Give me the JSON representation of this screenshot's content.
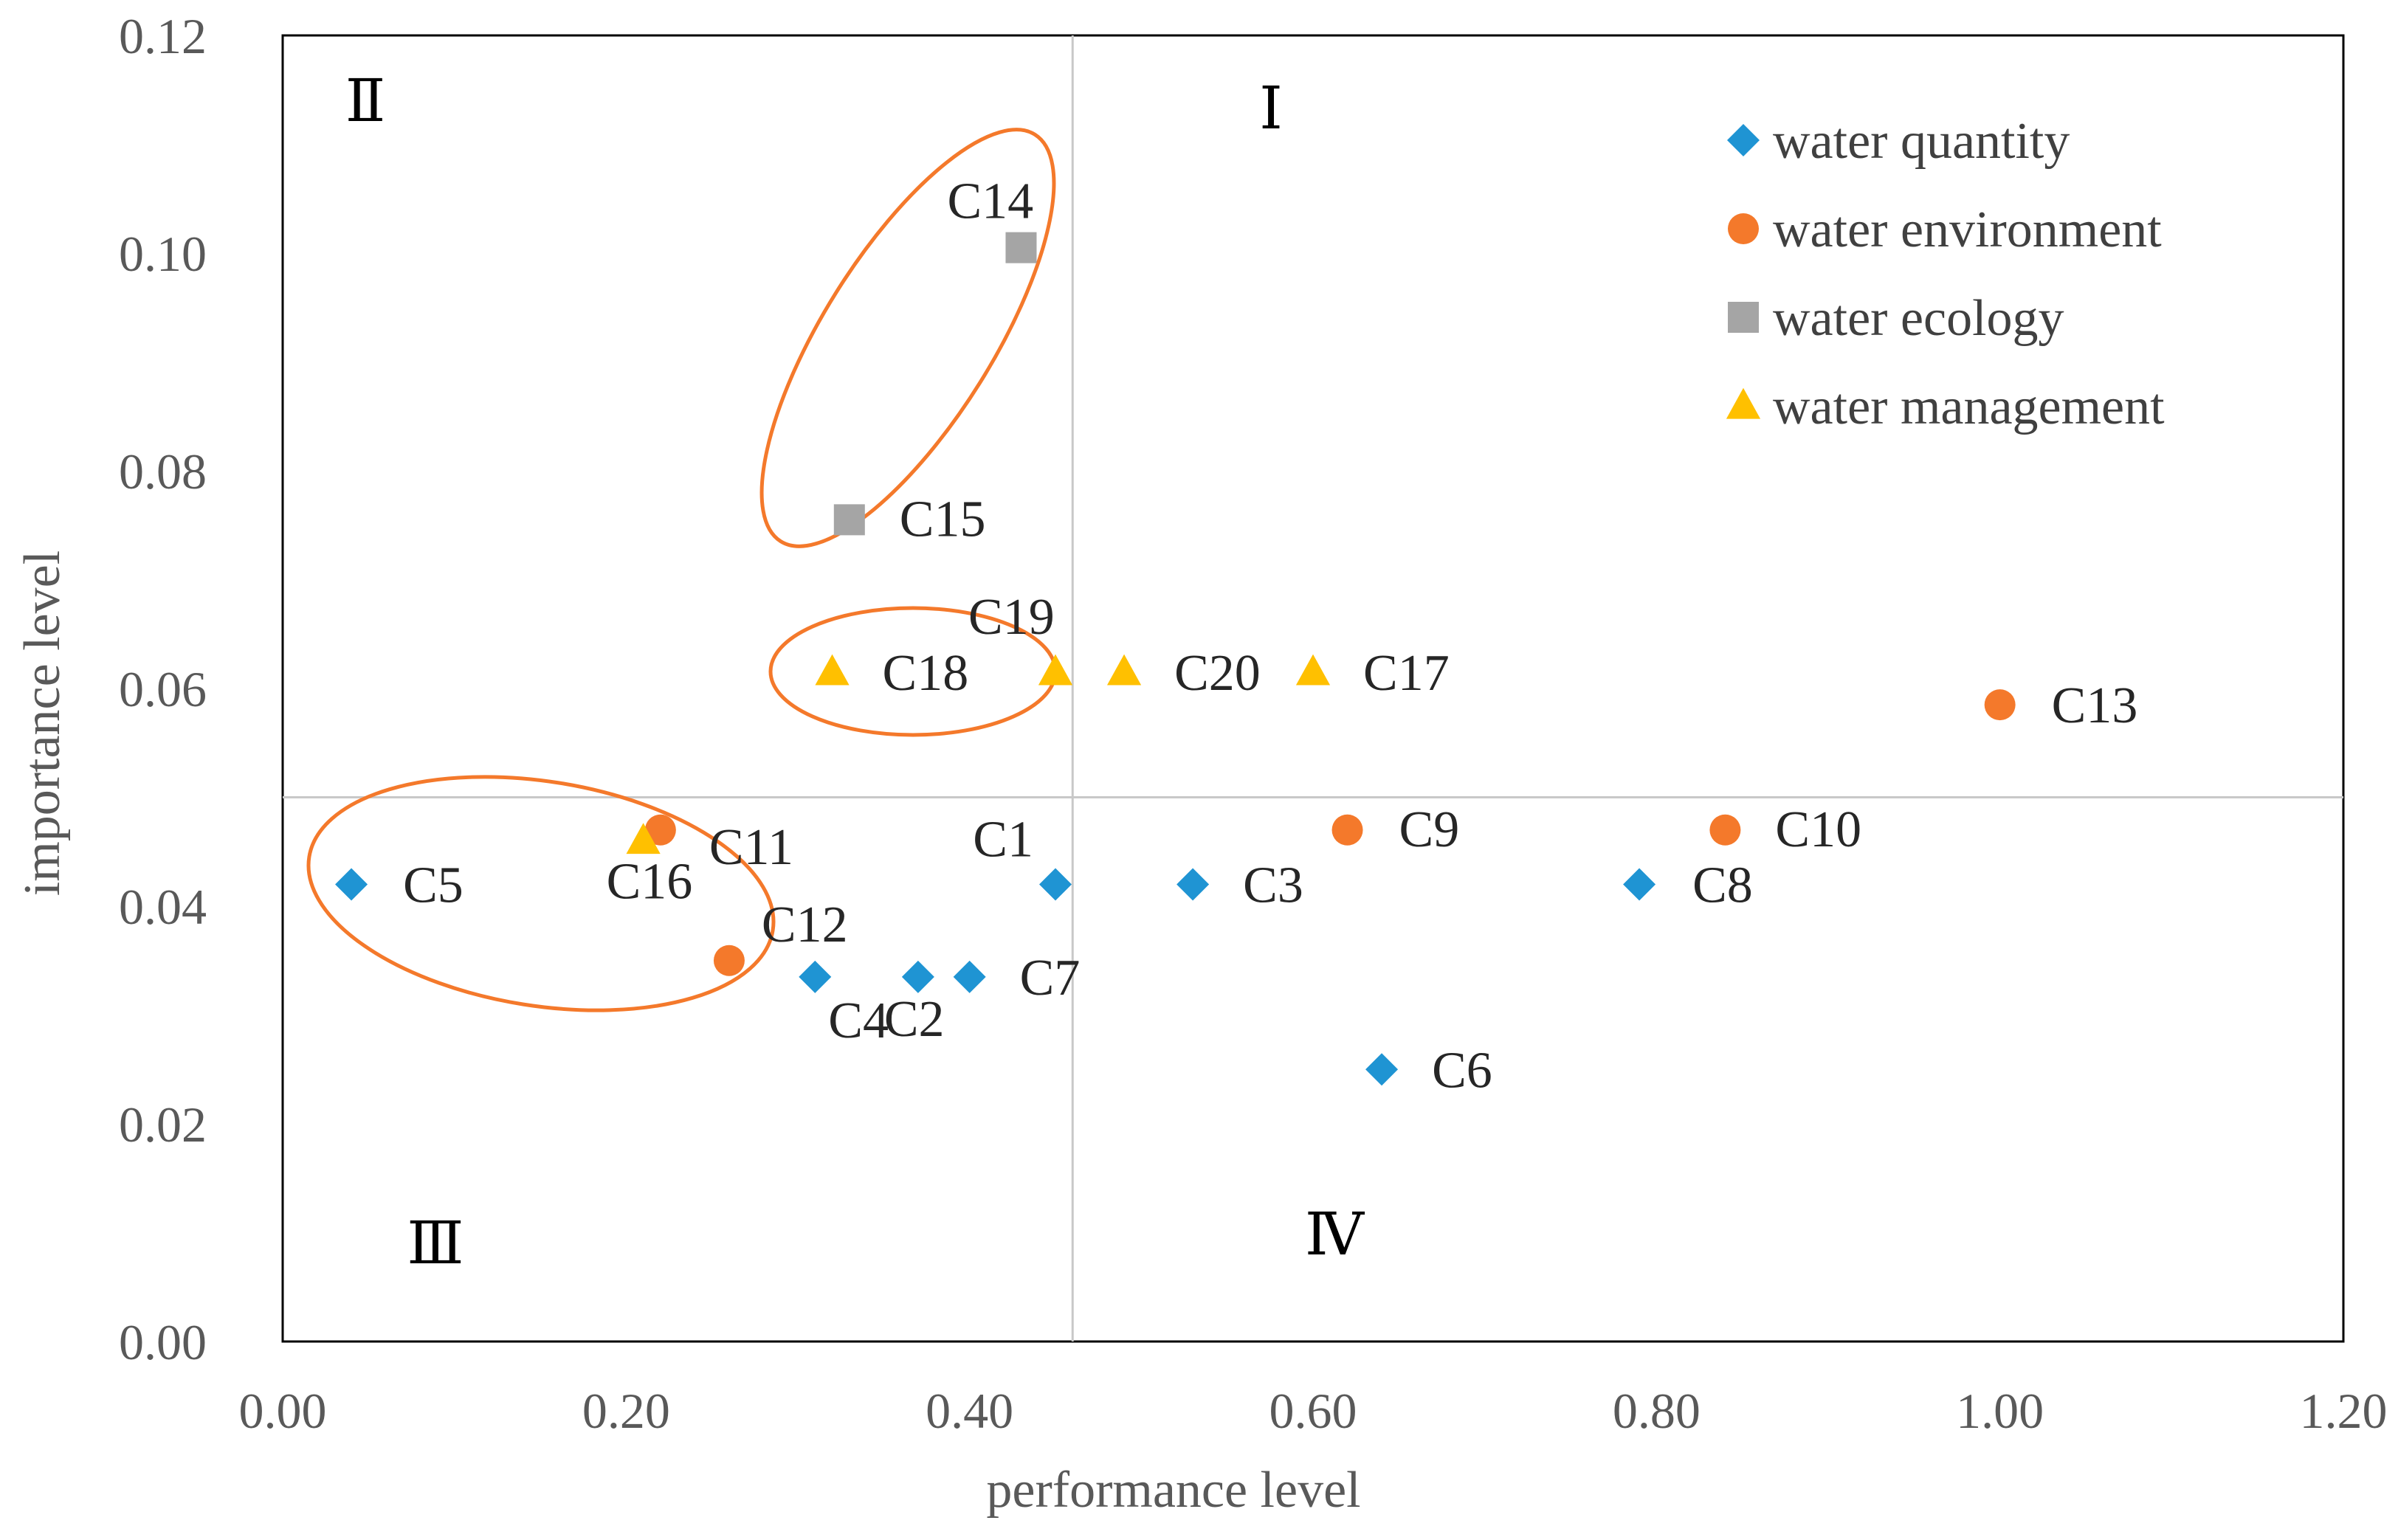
{
  "chart_data": {
    "type": "scatter",
    "xlabel": "performance level",
    "ylabel": "importance level",
    "xlim": [
      0,
      1.2
    ],
    "ylim": [
      0,
      0.12
    ],
    "x_ticks": [
      "0.00",
      "0.20",
      "0.40",
      "0.60",
      "0.80",
      "1.00",
      "1.20"
    ],
    "y_ticks": [
      "0.00",
      "0.02",
      "0.04",
      "0.06",
      "0.08",
      "0.10",
      "0.12"
    ],
    "divider": {
      "x": 0.46,
      "y": 0.05
    },
    "quadrants": [
      {
        "label": "Ⅰ",
        "position": "top-right"
      },
      {
        "label": "Ⅱ",
        "position": "top-left"
      },
      {
        "label": "Ⅲ",
        "position": "bottom-left"
      },
      {
        "label": "Ⅳ",
        "position": "bottom-right"
      }
    ],
    "legend_position": "top-right",
    "series": [
      {
        "name": "water quantity",
        "marker": "diamond",
        "color": "#1f94d3",
        "points": [
          {
            "label": "C1",
            "x": 0.45,
            "y": 0.042
          },
          {
            "label": "C2",
            "x": 0.37,
            "y": 0.0335
          },
          {
            "label": "C3",
            "x": 0.53,
            "y": 0.042
          },
          {
            "label": "C4",
            "x": 0.31,
            "y": 0.0335
          },
          {
            "label": "C5",
            "x": 0.04,
            "y": 0.042
          },
          {
            "label": "C6",
            "x": 0.64,
            "y": 0.025
          },
          {
            "label": "C7",
            "x": 0.4,
            "y": 0.0335
          },
          {
            "label": "C8",
            "x": 0.79,
            "y": 0.042
          }
        ]
      },
      {
        "name": "water environment",
        "marker": "circle",
        "color": "#f4792b",
        "points": [
          {
            "label": "C9",
            "x": 0.62,
            "y": 0.047
          },
          {
            "label": "C10",
            "x": 0.84,
            "y": 0.047
          },
          {
            "label": "C11",
            "x": 0.22,
            "y": 0.047
          },
          {
            "label": "C12",
            "x": 0.26,
            "y": 0.035
          },
          {
            "label": "C13",
            "x": 1.0,
            "y": 0.0585
          }
        ]
      },
      {
        "name": "water ecology",
        "marker": "square",
        "color": "#a5a5a5",
        "points": [
          {
            "label": "C14",
            "x": 0.43,
            "y": 0.1005
          },
          {
            "label": "C15",
            "x": 0.33,
            "y": 0.0755
          }
        ]
      },
      {
        "name": "water management",
        "marker": "triangle",
        "color": "#ffc000",
        "points": [
          {
            "label": "C16",
            "x": 0.21,
            "y": 0.046
          },
          {
            "label": "C17",
            "x": 0.6,
            "y": 0.0615
          },
          {
            "label": "C18",
            "x": 0.32,
            "y": 0.0615
          },
          {
            "label": "C19",
            "x": 0.45,
            "y": 0.0615
          },
          {
            "label": "C20",
            "x": 0.49,
            "y": 0.0615
          }
        ]
      }
    ],
    "highlight_ellipses": [
      {
        "around": [
          "C14",
          "C15"
        ],
        "color": "#f4792b"
      },
      {
        "around": [
          "C18",
          "C19"
        ],
        "color": "#f4792b"
      },
      {
        "around": [
          "C5",
          "C11",
          "C12",
          "C16"
        ],
        "color": "#f4792b"
      }
    ]
  }
}
